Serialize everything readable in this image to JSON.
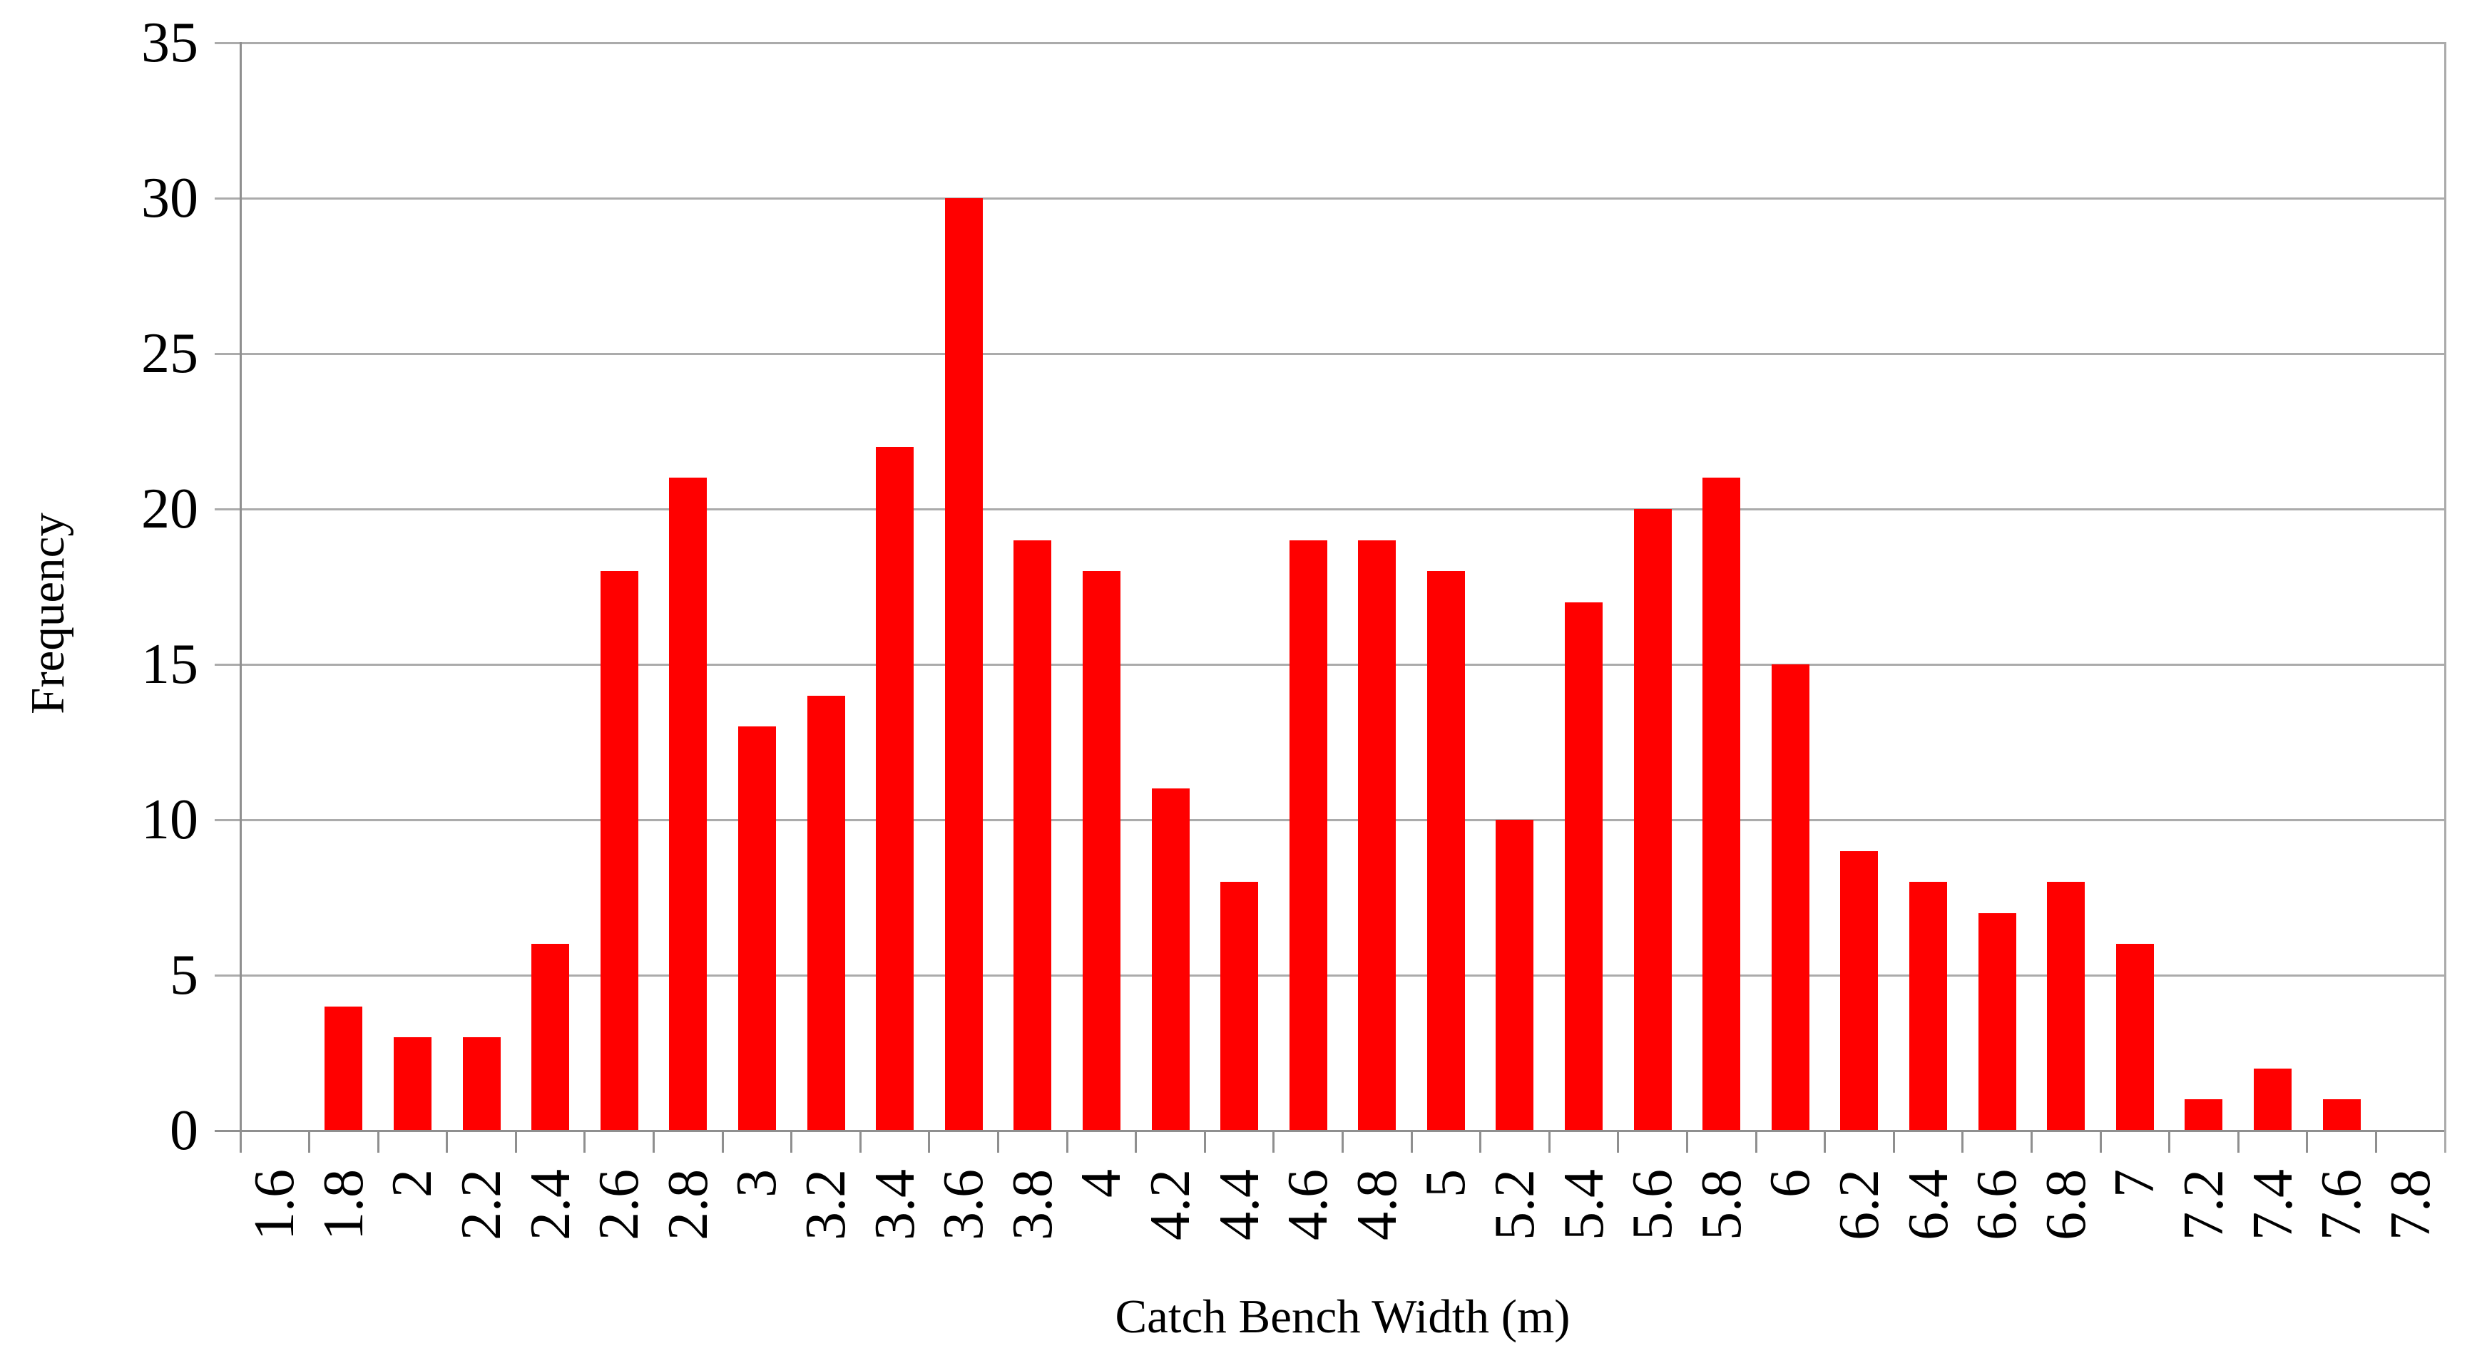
{
  "chart_data": {
    "type": "bar",
    "title": "",
    "xlabel": "Catch Bench Width (m)",
    "ylabel": "Frequency",
    "categories": [
      "1.6",
      "1.8",
      "2",
      "2.2",
      "2.4",
      "2.6",
      "2.8",
      "3",
      "3.2",
      "3.4",
      "3.6",
      "3.8",
      "4",
      "4.2",
      "4.4",
      "4.6",
      "4.8",
      "5",
      "5.2",
      "5.4",
      "5.6",
      "5.8",
      "6",
      "6.2",
      "6.4",
      "6.6",
      "6.8",
      "7",
      "7.2",
      "7.4",
      "7.6",
      "7.8"
    ],
    "values": [
      0,
      4,
      3,
      3,
      6,
      18,
      21,
      13,
      14,
      22,
      30,
      19,
      18,
      11,
      8,
      19,
      19,
      18,
      10,
      17,
      20,
      21,
      15,
      9,
      8,
      7,
      8,
      6,
      1,
      2,
      1,
      0
    ],
    "ylim": [
      0,
      35
    ],
    "yticks": [
      0,
      5,
      10,
      15,
      20,
      25,
      30,
      35
    ],
    "x_tick_label_rotation": -90,
    "grid": true,
    "legend": false,
    "bar_color": "#ff0000",
    "gridline_color": "#ababab",
    "axis_color": "#8f8f8f",
    "text_color": "#000000",
    "background_color": "#ffffff"
  }
}
